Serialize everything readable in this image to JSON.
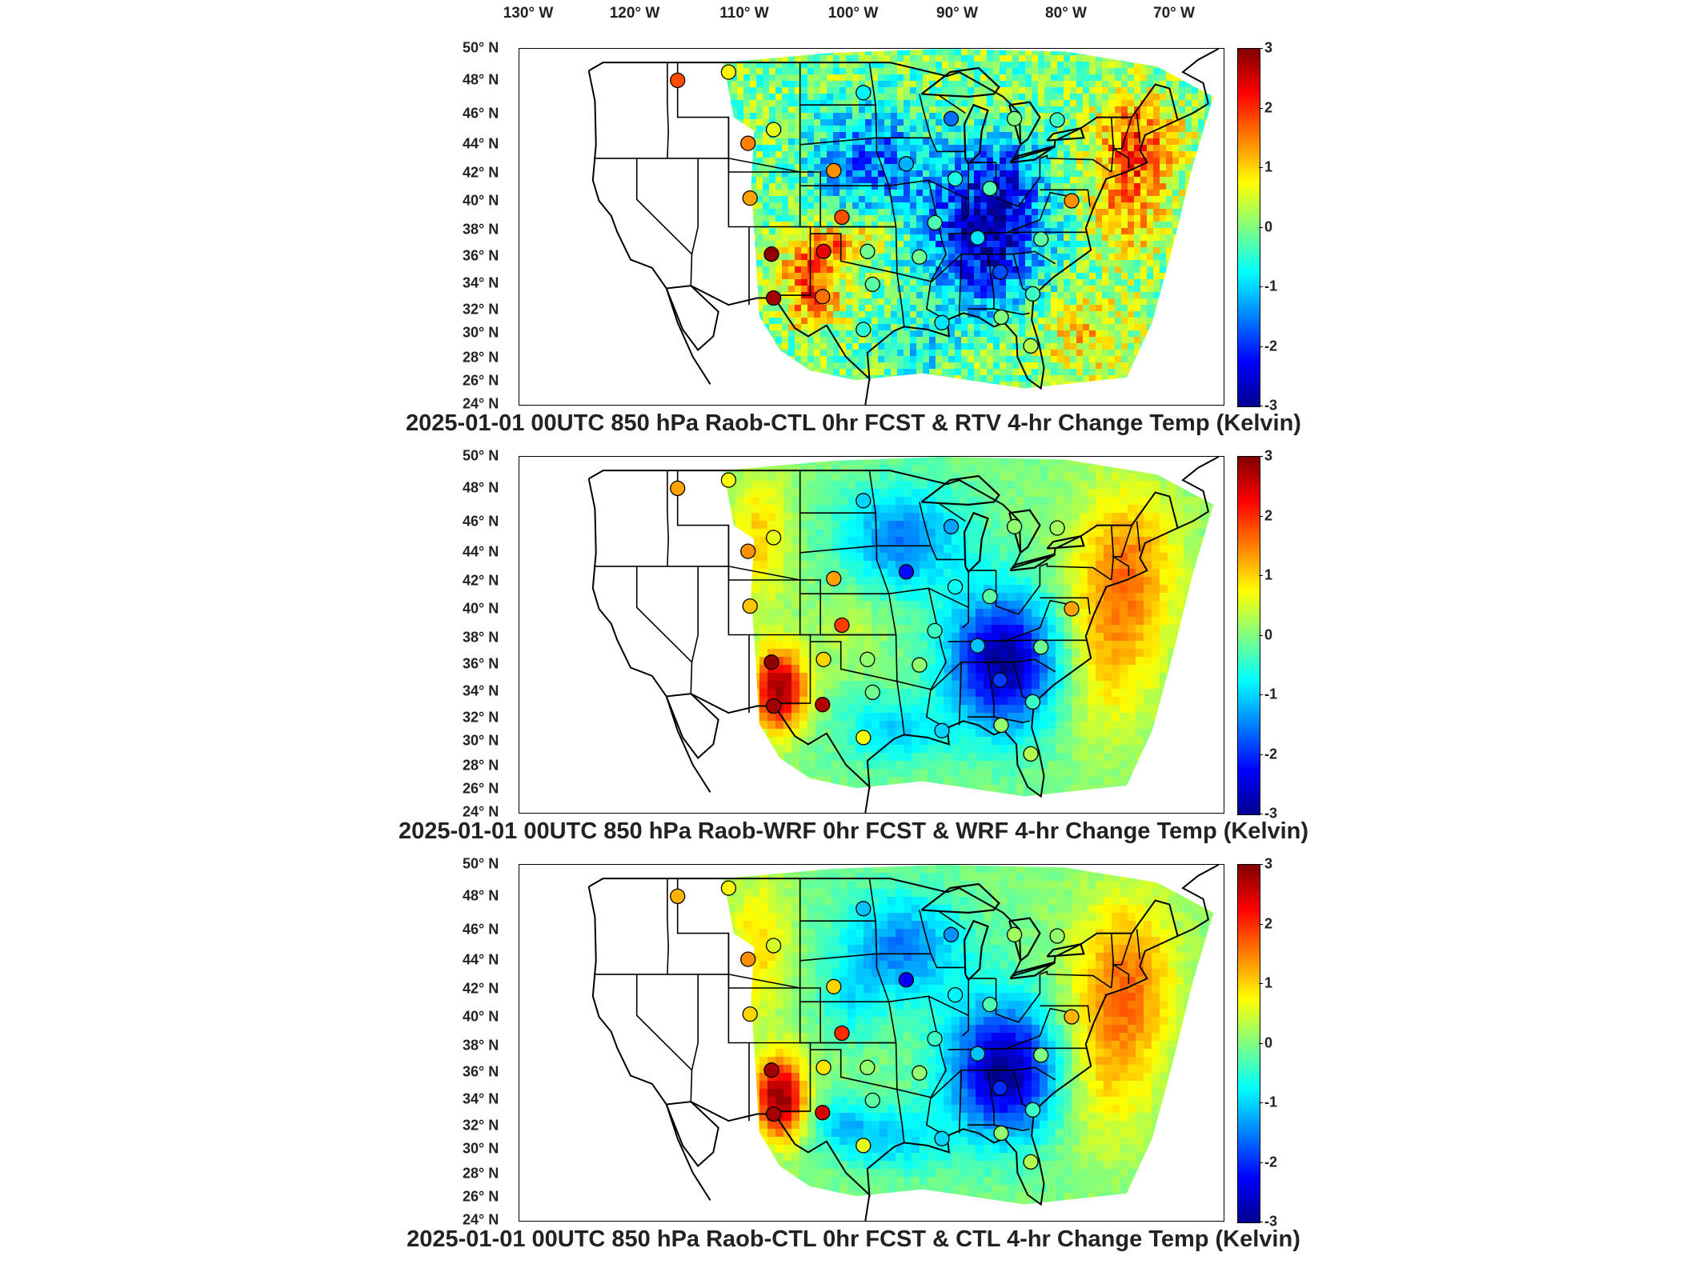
{
  "longitude_axis": [
    "130° W",
    "120° W",
    "110° W",
    "100° W",
    "90° W",
    "80° W",
    "70° W"
  ],
  "latitude_axis": [
    "50° N",
    "48° N",
    "46° N",
    "44° N",
    "42° N",
    "40° N",
    "38° N",
    "36° N",
    "34° N",
    "32° N",
    "30° N",
    "28° N",
    "26° N",
    "24° N"
  ],
  "colorbar": {
    "ticks": [
      "3",
      "2",
      "1",
      "0",
      "-1",
      "-2",
      "-3"
    ],
    "range": [
      -3,
      3
    ],
    "colormap": "jet",
    "colors": [
      "#00008f",
      "#0000ff",
      "#0080ff",
      "#00ffff",
      "#80ff80",
      "#ffff00",
      "#ff8000",
      "#ff0000",
      "#800000"
    ]
  },
  "panels": [
    {
      "title": "2025-01-01 00UTC 850 hPa Raob-CTL 0hr FCST & RTV 4-hr Change Temp (Kelvin)",
      "field_pattern": "noisy retrieval field, cold core over Ohio/Tennessee valleys, warm along east coast and southern high plains",
      "stations": [
        {
          "lon": -116.0,
          "lat": 47.7,
          "value": 1.8
        },
        {
          "lon": -111.0,
          "lat": 48.3,
          "value": 0.8
        },
        {
          "lon": -97.8,
          "lat": 46.8,
          "value": -0.8
        },
        {
          "lon": -89.2,
          "lat": 44.9,
          "value": -1.6
        },
        {
          "lon": -83.0,
          "lat": 44.9,
          "value": 0.0
        },
        {
          "lon": -78.8,
          "lat": 44.8,
          "value": -0.4
        },
        {
          "lon": -106.6,
          "lat": 44.1,
          "value": 0.6
        },
        {
          "lon": -109.1,
          "lat": 43.1,
          "value": 1.5
        },
        {
          "lon": -100.7,
          "lat": 41.1,
          "value": 1.4
        },
        {
          "lon": -93.6,
          "lat": 41.6,
          "value": -1.2
        },
        {
          "lon": -88.8,
          "lat": 40.5,
          "value": -0.6
        },
        {
          "lon": -85.4,
          "lat": 39.8,
          "value": -0.3
        },
        {
          "lon": -77.4,
          "lat": 38.9,
          "value": 1.4
        },
        {
          "lon": -108.9,
          "lat": 39.1,
          "value": 1.3
        },
        {
          "lon": -99.9,
          "lat": 37.7,
          "value": 1.8
        },
        {
          "lon": -90.8,
          "lat": 37.3,
          "value": -0.3
        },
        {
          "lon": -86.6,
          "lat": 36.2,
          "value": -0.9
        },
        {
          "lon": -80.4,
          "lat": 36.1,
          "value": -0.2
        },
        {
          "lon": -106.8,
          "lat": 35.0,
          "value": 2.9
        },
        {
          "lon": -101.7,
          "lat": 35.2,
          "value": 2.4
        },
        {
          "lon": -97.4,
          "lat": 35.2,
          "value": -0.1
        },
        {
          "lon": -92.3,
          "lat": 34.8,
          "value": -0.1
        },
        {
          "lon": -96.9,
          "lat": 32.8,
          "value": -0.2
        },
        {
          "lon": -101.8,
          "lat": 31.9,
          "value": 1.6
        },
        {
          "lon": -106.6,
          "lat": 31.8,
          "value": 2.8
        },
        {
          "lon": -84.4,
          "lat": 33.7,
          "value": -1.8
        },
        {
          "lon": -81.2,
          "lat": 32.1,
          "value": -0.4
        },
        {
          "lon": -97.8,
          "lat": 29.5,
          "value": -0.5
        },
        {
          "lon": -90.1,
          "lat": 30.0,
          "value": -0.9
        },
        {
          "lon": -84.3,
          "lat": 30.4,
          "value": 0.0
        },
        {
          "lon": -81.4,
          "lat": 28.3,
          "value": 0.3
        }
      ]
    },
    {
      "title": "2025-01-01 00UTC 850 hPa Raob-WRF 0hr FCST & WRF 4-hr Change Temp (Kelvin)",
      "field_pattern": "smooth model field, strong cold core over the southeast US, hot over southern Rockies, warm east coast",
      "stations": [
        {
          "lon": -116.0,
          "lat": 47.7,
          "value": 1.3
        },
        {
          "lon": -111.0,
          "lat": 48.3,
          "value": 0.7
        },
        {
          "lon": -97.8,
          "lat": 46.8,
          "value": -1.0
        },
        {
          "lon": -89.2,
          "lat": 44.9,
          "value": -1.3
        },
        {
          "lon": -83.0,
          "lat": 44.9,
          "value": 0.1
        },
        {
          "lon": -78.8,
          "lat": 44.8,
          "value": 0.2
        },
        {
          "lon": -106.6,
          "lat": 44.1,
          "value": 0.6
        },
        {
          "lon": -109.1,
          "lat": 43.1,
          "value": 1.4
        },
        {
          "lon": -100.7,
          "lat": 41.1,
          "value": 1.3
        },
        {
          "lon": -93.6,
          "lat": 41.6,
          "value": -2.2
        },
        {
          "lon": -88.8,
          "lat": 40.5,
          "value": -0.7
        },
        {
          "lon": -85.4,
          "lat": 39.8,
          "value": -0.2
        },
        {
          "lon": -77.4,
          "lat": 38.9,
          "value": 1.3
        },
        {
          "lon": -108.9,
          "lat": 39.1,
          "value": 1.1
        },
        {
          "lon": -99.9,
          "lat": 37.7,
          "value": 1.9
        },
        {
          "lon": -90.8,
          "lat": 37.3,
          "value": -0.4
        },
        {
          "lon": -86.6,
          "lat": 36.2,
          "value": -1.1
        },
        {
          "lon": -80.4,
          "lat": 36.1,
          "value": -0.1
        },
        {
          "lon": -106.8,
          "lat": 35.0,
          "value": 2.9
        },
        {
          "lon": -101.7,
          "lat": 35.2,
          "value": 1.0
        },
        {
          "lon": -97.4,
          "lat": 35.2,
          "value": 0.1
        },
        {
          "lon": -92.3,
          "lat": 34.8,
          "value": 0.1
        },
        {
          "lon": -96.9,
          "lat": 32.8,
          "value": -0.1
        },
        {
          "lon": -101.8,
          "lat": 31.9,
          "value": 2.7
        },
        {
          "lon": -106.6,
          "lat": 31.8,
          "value": 2.8
        },
        {
          "lon": -84.4,
          "lat": 33.7,
          "value": -1.9
        },
        {
          "lon": -81.2,
          "lat": 32.1,
          "value": -0.4
        },
        {
          "lon": -97.8,
          "lat": 29.5,
          "value": 0.7
        },
        {
          "lon": -90.1,
          "lat": 30.0,
          "value": -1.0
        },
        {
          "lon": -84.3,
          "lat": 30.4,
          "value": 0.1
        },
        {
          "lon": -81.4,
          "lat": 28.3,
          "value": 0.3
        }
      ]
    },
    {
      "title": "2025-01-01 00UTC 850 hPa Raob-CTL 0hr FCST & CTL 4-hr Change Temp (Kelvin)",
      "field_pattern": "smooth control field, broad cold band from Great Lakes to Gulf coast, hot southern Rockies, warm east coast",
      "stations": [
        {
          "lon": -116.0,
          "lat": 47.7,
          "value": 1.2
        },
        {
          "lon": -111.0,
          "lat": 48.3,
          "value": 0.8
        },
        {
          "lon": -97.8,
          "lat": 46.8,
          "value": -1.1
        },
        {
          "lon": -89.2,
          "lat": 44.9,
          "value": -1.4
        },
        {
          "lon": -83.0,
          "lat": 44.9,
          "value": 0.2
        },
        {
          "lon": -78.8,
          "lat": 44.8,
          "value": 0.1
        },
        {
          "lon": -106.6,
          "lat": 44.1,
          "value": 0.5
        },
        {
          "lon": -109.1,
          "lat": 43.1,
          "value": 1.4
        },
        {
          "lon": -100.7,
          "lat": 41.1,
          "value": 1.0
        },
        {
          "lon": -93.6,
          "lat": 41.6,
          "value": -2.3
        },
        {
          "lon": -88.8,
          "lat": 40.5,
          "value": -0.8
        },
        {
          "lon": -85.4,
          "lat": 39.8,
          "value": -0.3
        },
        {
          "lon": -77.4,
          "lat": 38.9,
          "value": 1.2
        },
        {
          "lon": -108.9,
          "lat": 39.1,
          "value": 1.0
        },
        {
          "lon": -99.9,
          "lat": 37.7,
          "value": 2.0
        },
        {
          "lon": -90.8,
          "lat": 37.3,
          "value": -0.4
        },
        {
          "lon": -86.6,
          "lat": 36.2,
          "value": -1.1
        },
        {
          "lon": -80.4,
          "lat": 36.1,
          "value": 0.0
        },
        {
          "lon": -106.8,
          "lat": 35.0,
          "value": 2.8
        },
        {
          "lon": -101.7,
          "lat": 35.2,
          "value": 0.9
        },
        {
          "lon": -97.4,
          "lat": 35.2,
          "value": 0.1
        },
        {
          "lon": -92.3,
          "lat": 34.8,
          "value": 0.1
        },
        {
          "lon": -96.9,
          "lat": 32.8,
          "value": -0.2
        },
        {
          "lon": -101.8,
          "lat": 31.9,
          "value": 2.5
        },
        {
          "lon": -106.6,
          "lat": 31.8,
          "value": 2.8
        },
        {
          "lon": -84.4,
          "lat": 33.7,
          "value": -2.0
        },
        {
          "lon": -81.2,
          "lat": 32.1,
          "value": -0.4
        },
        {
          "lon": -97.8,
          "lat": 29.5,
          "value": 0.6
        },
        {
          "lon": -90.1,
          "lat": 30.0,
          "value": -1.0
        },
        {
          "lon": -84.3,
          "lat": 30.4,
          "value": 0.1
        },
        {
          "lon": -81.4,
          "lat": 28.3,
          "value": 0.3
        }
      ]
    }
  ]
}
